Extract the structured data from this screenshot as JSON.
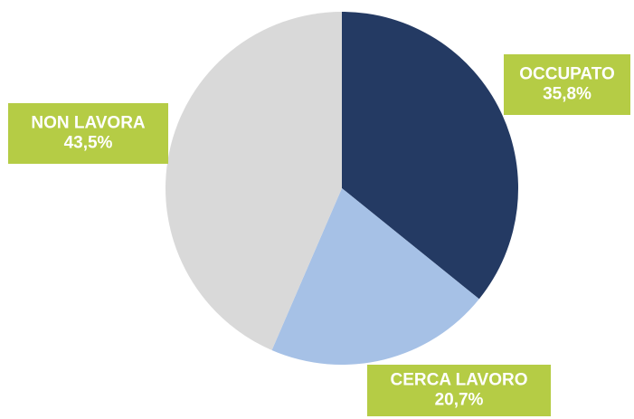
{
  "chart_data": {
    "type": "pie",
    "categories": [
      "OCCUPATO",
      "CERCA LAVORO",
      "NON LAVORA"
    ],
    "values": [
      35.8,
      20.7,
      43.5
    ],
    "value_labels": [
      "35,8%",
      "20,7%",
      "43,5%"
    ],
    "colors": [
      "#243a63",
      "#a6c1e6",
      "#d9d9d9"
    ]
  }
}
